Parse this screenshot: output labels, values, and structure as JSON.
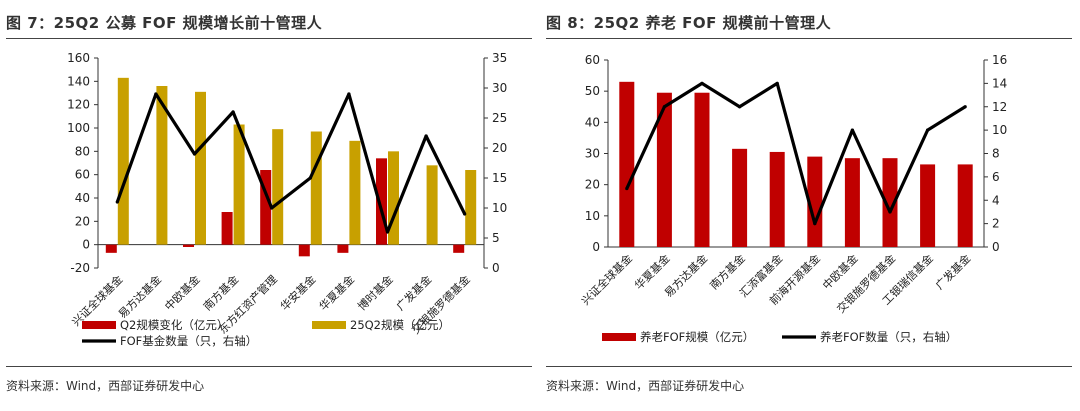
{
  "charts": [
    {
      "id": "left",
      "title": "图 7：25Q2 公募 FOF 规模增长前十管理人",
      "source": "资料来源：Wind，西部证券研发中心",
      "chart_data": {
        "type": "bar+line",
        "categories": [
          "兴证全球基金",
          "易方达基金",
          "中欧基金",
          "南方基金",
          "东方红资产管理",
          "华安基金",
          "华夏基金",
          "博时基金",
          "广发基金",
          "交银施罗德基金"
        ],
        "series": [
          {
            "name": "Q2规模变化（亿元）",
            "type": "bar",
            "axis": "left",
            "color": "#c00000",
            "values": [
              -7,
              0,
              -2,
              28,
              64,
              -10,
              -7,
              74,
              0,
              -7
            ]
          },
          {
            "name": "25Q2规模（亿元）",
            "type": "bar",
            "axis": "left",
            "color": "#c8a000",
            "values": [
              143,
              136,
              131,
              103,
              99,
              97,
              89,
              80,
              68,
              64
            ]
          },
          {
            "name": "FOF基金数量（只，右轴）",
            "type": "line",
            "axis": "right",
            "color": "#000000",
            "values": [
              11,
              29,
              19,
              26,
              10,
              15,
              29,
              6,
              22,
              9
            ]
          }
        ],
        "ylim_left": [
          -20,
          160
        ],
        "yticks_left": [
          -20,
          0,
          20,
          40,
          60,
          80,
          100,
          120,
          140,
          160
        ],
        "ylim_right": [
          0,
          35
        ],
        "yticks_right": [
          0,
          5,
          10,
          15,
          20,
          25,
          30,
          35
        ]
      }
    },
    {
      "id": "right",
      "title": "图 8：25Q2 养老 FOF 规模前十管理人",
      "source": "资料来源：Wind，西部证券研发中心",
      "chart_data": {
        "type": "bar+line",
        "categories": [
          "兴证全球基金",
          "华夏基金",
          "易方达基金",
          "南方基金",
          "汇添富基金",
          "前海开源基金",
          "中欧基金",
          "交银施罗德基金",
          "工银瑞信基金",
          "广发基金"
        ],
        "series": [
          {
            "name": "养老FOF规模（亿元）",
            "type": "bar",
            "axis": "left",
            "color": "#c00000",
            "values": [
              53,
              49.5,
              49.5,
              31.5,
              30.5,
              29,
              28.5,
              28.5,
              26.5,
              26.5
            ]
          },
          {
            "name": "养老FOF数量（只，右轴）",
            "type": "line",
            "axis": "right",
            "color": "#000000",
            "values": [
              5,
              12,
              14,
              12,
              14,
              2,
              10,
              3,
              10,
              12
            ]
          }
        ],
        "ylim_left": [
          0,
          60
        ],
        "yticks_left": [
          0,
          10,
          20,
          30,
          40,
          50,
          60
        ],
        "ylim_right": [
          0,
          16
        ],
        "yticks_right": [
          0,
          2,
          4,
          6,
          8,
          10,
          12,
          14,
          16
        ]
      }
    }
  ]
}
